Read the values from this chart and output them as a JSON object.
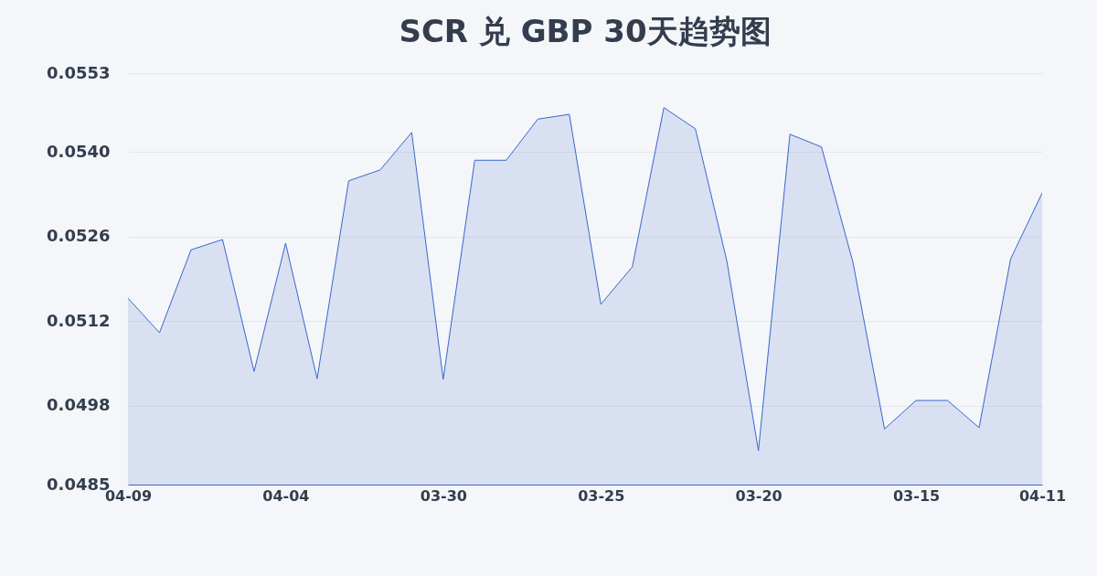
{
  "chart_data": {
    "type": "area",
    "title": "SCR 兑 GBP 30天趋势图",
    "categories": [
      "04-09",
      null,
      null,
      null,
      null,
      "04-04",
      null,
      null,
      null,
      null,
      "03-30",
      null,
      null,
      null,
      null,
      "03-25",
      null,
      null,
      null,
      null,
      "03-20",
      null,
      null,
      null,
      null,
      "03-15",
      null,
      null,
      null,
      "04-11"
    ],
    "series": [
      {
        "color": "#3a66cc",
        "values": [
          0.05158,
          0.05101,
          0.05238,
          0.05255,
          0.05037,
          0.05249,
          0.05025,
          0.05352,
          0.0537,
          0.05432,
          0.05024,
          0.05386,
          0.05386,
          0.05454,
          0.05462,
          0.05148,
          0.0521,
          0.05473,
          0.05438,
          0.05219,
          0.04906,
          0.05429,
          0.05408,
          0.05217,
          0.04942,
          0.04989,
          0.04989,
          0.04944,
          0.05223,
          0.05332
        ]
      }
    ],
    "ylim": [
      0.0485,
      0.0553
    ],
    "yticks": [
      0.0485,
      0.0498,
      0.0512,
      0.0526,
      {
        "value": 0.054,
        "label": "0.0540"
      },
      0.0553
    ],
    "grid": "y"
  }
}
